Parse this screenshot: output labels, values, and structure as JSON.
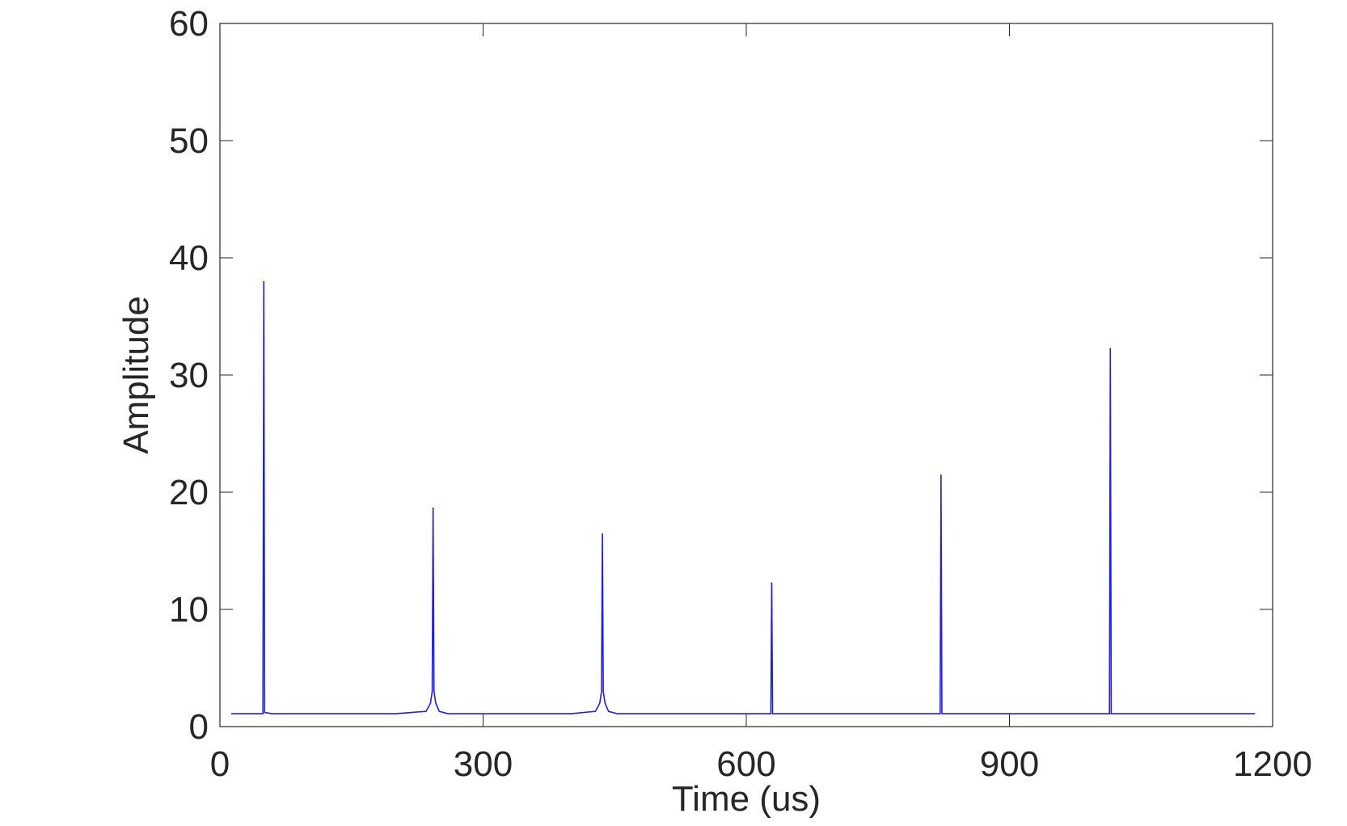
{
  "chart_data": {
    "type": "line",
    "x_label": "Time (us)",
    "y_label": "Amplitude",
    "xlim": [
      0,
      1200
    ],
    "xticks": [
      0,
      300,
      600,
      900,
      1200
    ],
    "ylim": [
      0,
      60
    ],
    "yticks": [
      0,
      10,
      20,
      30,
      40,
      50,
      60
    ],
    "x": [
      13,
      40,
      49,
      50,
      51,
      60,
      100,
      150,
      200,
      235,
      240,
      242,
      243,
      244,
      246,
      250,
      260,
      300,
      350,
      400,
      428,
      433,
      435,
      436,
      437,
      439,
      443,
      453,
      500,
      550,
      600,
      628,
      629,
      630,
      650,
      700,
      750,
      800,
      821,
      822,
      823,
      850,
      900,
      950,
      1000,
      1014,
      1015,
      1016,
      1050,
      1100,
      1150,
      1180
    ],
    "series": [
      {
        "color": "#2020dd",
        "values": [
          1.1,
          1.1,
          1.1,
          38,
          1.2,
          1.1,
          1.1,
          1.1,
          1.1,
          1.3,
          2,
          3,
          18.7,
          3,
          2,
          1.3,
          1.1,
          1.1,
          1.1,
          1.1,
          1.3,
          2,
          3,
          16.5,
          3,
          2,
          1.3,
          1.1,
          1.1,
          1.1,
          1.1,
          1.1,
          12.3,
          1.1,
          1.1,
          1.1,
          1.1,
          1.1,
          1.1,
          21.5,
          1.1,
          1.1,
          1.1,
          1.1,
          1.1,
          1.1,
          32.3,
          1.1,
          1.1,
          1.1,
          1.1,
          1.1
        ]
      }
    ]
  }
}
